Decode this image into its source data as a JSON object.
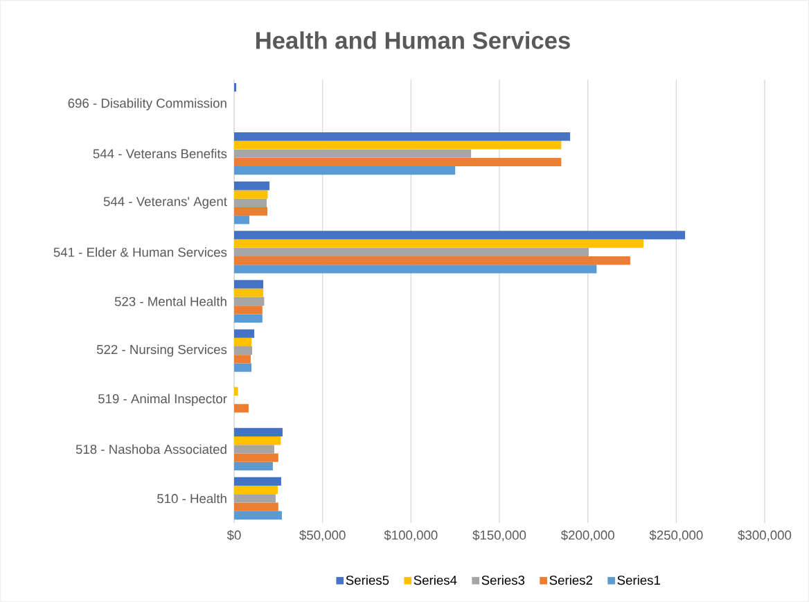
{
  "chart_data": {
    "type": "bar",
    "orientation": "horizontal",
    "title": "Health and Human Services",
    "categories": [
      "696 - Disability Commission",
      "544 - Veterans Benefits",
      "544 - Veterans' Agent",
      "541 - Elder & Human Services",
      "523 - Mental Health",
      "522 - Nursing Services",
      "519 - Animal Inspector",
      "518 - Nashoba Associated",
      "510 - Health"
    ],
    "series": [
      {
        "name": "Series1",
        "color": "#5b9bd5",
        "values": [
          null,
          125000,
          8600,
          205000,
          16000,
          9800,
          null,
          21900,
          27000
        ]
      },
      {
        "name": "Series2",
        "color": "#ed7d31",
        "values": [
          null,
          185000,
          18800,
          224000,
          16000,
          9400,
          8200,
          25000,
          25000
        ]
      },
      {
        "name": "Series3",
        "color": "#a5a5a5",
        "values": [
          null,
          134000,
          18400,
          200500,
          17000,
          10200,
          null,
          22700,
          23500
        ]
      },
      {
        "name": "Series4",
        "color": "#ffc000",
        "values": [
          null,
          185000,
          19000,
          231500,
          16500,
          9900,
          2200,
          26400,
          24700
        ]
      },
      {
        "name": "Series5",
        "color": "#4472c4",
        "values": [
          1200,
          190000,
          20000,
          255000,
          16500,
          11400,
          null,
          27400,
          26600
        ]
      }
    ],
    "xlim": [
      0,
      300000
    ],
    "xticks": [
      {
        "value": 0,
        "label": "$0"
      },
      {
        "value": 50000,
        "label": "$50,000"
      },
      {
        "value": 100000,
        "label": "$100,000"
      },
      {
        "value": 150000,
        "label": "$150,000"
      },
      {
        "value": 200000,
        "label": "$200,000"
      },
      {
        "value": 250000,
        "label": "$250,000"
      },
      {
        "value": 300000,
        "label": "$300,000"
      }
    ],
    "grid": "x",
    "legend": "bottom"
  }
}
